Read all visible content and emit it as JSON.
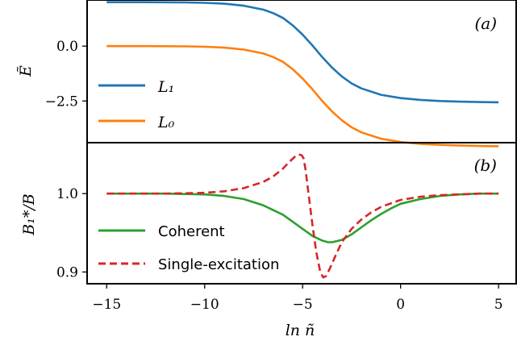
{
  "chart_data": [
    {
      "type": "line",
      "panel_label": "(a)",
      "ylabel": "Ẽ",
      "ylim": [
        -4.4,
        2.1
      ],
      "yticks": [
        {
          "value": 0.0,
          "label": "0.0"
        },
        {
          "value": -2.5,
          "label": "−2.5"
        }
      ],
      "x": [
        -15,
        -13,
        -11,
        -10,
        -9,
        -8,
        -7,
        -6.5,
        -6,
        -5.5,
        -5,
        -4.5,
        -4,
        -3.5,
        -3,
        -2.5,
        -2,
        -1,
        0,
        1,
        2,
        3,
        4,
        5
      ],
      "series": [
        {
          "name": "L₁",
          "color": "#1f77b4",
          "values": [
            2.0,
            2.0,
            1.99,
            1.97,
            1.93,
            1.84,
            1.66,
            1.5,
            1.28,
            0.94,
            0.52,
            0.03,
            -0.5,
            -0.98,
            -1.38,
            -1.7,
            -1.93,
            -2.22,
            -2.37,
            -2.45,
            -2.5,
            -2.53,
            -2.55,
            -2.56
          ]
        },
        {
          "name": "L₀",
          "color": "#ff7f0e",
          "values": [
            0.0,
            0.0,
            -0.01,
            -0.03,
            -0.07,
            -0.16,
            -0.34,
            -0.5,
            -0.72,
            -1.06,
            -1.48,
            -1.97,
            -2.5,
            -2.98,
            -3.38,
            -3.7,
            -3.93,
            -4.22,
            -4.37,
            -4.45,
            -4.5,
            -4.53,
            -4.55,
            -4.56
          ]
        }
      ],
      "legend": "lower-left"
    },
    {
      "type": "line",
      "panel_label": "(b)",
      "xlabel": "ln ñ",
      "ylabel": "B₁*/B",
      "ylim": [
        0.885,
        1.065
      ],
      "yticks": [
        {
          "value": 1.0,
          "label": "1.0"
        },
        {
          "value": 0.9,
          "label": "0.9"
        }
      ],
      "xlim": [
        -16,
        5.9
      ],
      "xticks": [
        {
          "value": -15,
          "label": "−15"
        },
        {
          "value": -10,
          "label": "−10"
        },
        {
          "value": -5,
          "label": "−5"
        },
        {
          "value": 0,
          "label": "0"
        },
        {
          "value": 5,
          "label": "5"
        }
      ],
      "series": [
        {
          "name": "Coherent",
          "color": "#2ca02c",
          "dash": "solid",
          "x": [
            -15,
            -12,
            -10,
            -9,
            -8,
            -7,
            -6,
            -5.5,
            -5,
            -4.5,
            -4,
            -3.7,
            -3.5,
            -3,
            -2.5,
            -2,
            -1.5,
            -1,
            -0.5,
            0,
            1,
            2,
            3,
            4,
            5
          ],
          "values": [
            1.0,
            1.0,
            0.999,
            0.997,
            0.993,
            0.985,
            0.973,
            0.964,
            0.955,
            0.946,
            0.94,
            0.938,
            0.938,
            0.941,
            0.948,
            0.957,
            0.966,
            0.974,
            0.981,
            0.987,
            0.993,
            0.997,
            0.999,
            1.0,
            1.0
          ]
        },
        {
          "name": "Single-excitation",
          "color": "#d62728",
          "dash": "dashed",
          "x": [
            -15,
            -12,
            -10,
            -9,
            -8,
            -7,
            -6.5,
            -6,
            -5.7,
            -5.4,
            -5.2,
            -5.05,
            -4.95,
            -4.85,
            -4.7,
            -4.5,
            -4.3,
            -4.1,
            -3.95,
            -3.8,
            -3.6,
            -3.3,
            -3.0,
            -2.5,
            -2.0,
            -1.5,
            -1.0,
            0,
            1,
            2,
            3,
            4,
            5
          ],
          "values": [
            1.0,
            1.0,
            1.001,
            1.003,
            1.007,
            1.015,
            1.022,
            1.032,
            1.04,
            1.047,
            1.05,
            1.049,
            1.045,
            1.03,
            1.0,
            0.96,
            0.925,
            0.9,
            0.893,
            0.895,
            0.905,
            0.922,
            0.938,
            0.955,
            0.967,
            0.976,
            0.983,
            0.992,
            0.996,
            0.998,
            0.999,
            1.0,
            1.0
          ]
        }
      ],
      "legend": "lower-left"
    }
  ]
}
